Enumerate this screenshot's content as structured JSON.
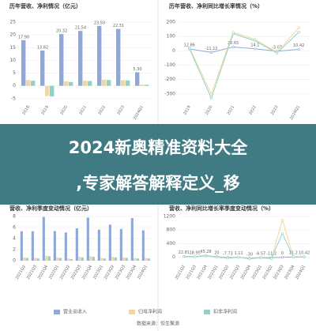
{
  "banner": {
    "line1": "2024新奥精准资料大全",
    "line2": ",专家解答解释定义_移"
  },
  "source": "数据来源：恒生聚源",
  "chart_data": [
    {
      "type": "bar",
      "title": "历年营收、净利情况（亿元）",
      "categories": [
        "2018",
        "2019",
        "2020",
        "2021",
        "2022",
        "2023",
        "2024Q1"
      ],
      "series": [
        {
          "color": "#8fa8d8",
          "values": [
            17.9,
            13.82,
            20.32,
            21.54,
            23.5,
            22.31,
            5.3
          ],
          "value_labels": [
            "17.90",
            "13.82",
            "20.32",
            "21.54",
            "23.50",
            "22.31",
            "5.30"
          ]
        },
        {
          "color": "#f3d79b",
          "values": [
            2.3,
            -4.0,
            1.8,
            2.0,
            2.4,
            2.2,
            0.5
          ]
        },
        {
          "color": "#8fd3c8",
          "values": [
            2.0,
            -4.2,
            1.5,
            1.9,
            2.3,
            2.1,
            0.4
          ]
        }
      ],
      "ylim": [
        -6,
        25
      ],
      "yticks": [
        -5,
        0,
        5,
        10,
        15,
        20,
        25
      ],
      "grid": true
    },
    {
      "type": "line",
      "title": "历年营收、净利同比增长率情况（%）",
      "categories": [
        "2019",
        "2020",
        "2021",
        "2022",
        "2023",
        "2024Q1"
      ],
      "series": [
        {
          "color": "#8fa8d8",
          "values": [
            12.86,
            -11.12,
            26.65,
            14.1,
            -3.07,
            10.42
          ],
          "value_labels": [
            "12.86",
            "-11.12",
            "26.65",
            "14.1",
            "-3.07",
            "10.42"
          ]
        },
        {
          "color": "#f3d79b",
          "values": [
            20,
            -300,
            130,
            80,
            -10,
            160
          ]
        },
        {
          "color": "#8fd3c8",
          "values": [
            15,
            -330,
            120,
            70,
            -15,
            130
          ]
        }
      ],
      "ylim": [
        -350,
        200
      ],
      "yticks": [
        -300,
        -200,
        -100,
        0,
        100,
        200
      ],
      "grid": true
    },
    {
      "type": "bar",
      "title": "营收、净利季度变动情况（亿元）",
      "categories": [
        "2021Q2",
        "2021Q3",
        "2021Q4",
        "2022Q1",
        "2022Q2",
        "2022Q3",
        "2022Q4",
        "2023Q1",
        "2023Q2",
        "2023Q3",
        "2023Q4",
        "2024Q1"
      ],
      "series": [
        {
          "name": "营业总收入",
          "color": "#8fa8d8",
          "values": [
            5.33,
            5.32,
            7.9,
            5.35,
            5.1,
            5.85,
            7.8,
            5.6,
            6.51,
            5.73,
            7.7,
            5.49
          ]
        },
        {
          "name": "归母净利润",
          "color": "#f3d79b",
          "values": [
            0.6,
            0.5,
            0.9,
            0.6,
            0.4,
            0.7,
            0.8,
            0.5,
            0.7,
            0.6,
            0.5,
            0.5
          ]
        },
        {
          "name": "扣非净利润",
          "color": "#8fd3c8",
          "values": [
            0.5,
            0.4,
            0.8,
            0.5,
            0.3,
            0.6,
            0.7,
            0.4,
            0.6,
            0.5,
            0.4,
            0.4
          ]
        }
      ],
      "ylim": [
        0,
        8
      ],
      "yticks": [
        0,
        2,
        4,
        6,
        8
      ],
      "grid": true
    },
    {
      "type": "line",
      "title": "营收、净利同比增长率季度变动情况（%）",
      "categories": [
        "2021Q2",
        "2021Q3",
        "2021Q4",
        "2022Q1",
        "2022Q2",
        "2022Q3",
        "2022Q4",
        "2023Q1",
        "2023Q2",
        "2023Q3",
        "2023Q4",
        "2024Q1"
      ],
      "series": [
        {
          "color": "#8fa8d8",
          "values": [
            22.81,
            18.95,
            45.28,
            20,
            -7.73,
            1.11,
            -30,
            -6.57,
            -11.2,
            0,
            11.2,
            10.42
          ],
          "value_labels": [
            "22.81",
            "18.95",
            "45.28",
            "20",
            "-7.73",
            "1.11",
            "-30",
            "-6.57",
            "-11.2",
            "0",
            "11.2",
            "10.42"
          ]
        },
        {
          "color": "#f3d79b",
          "values": [
            30,
            20,
            60,
            10,
            -20,
            5,
            -40,
            -10,
            -30,
            1100,
            20,
            15
          ]
        },
        {
          "color": "#8fd3c8",
          "values": [
            25,
            15,
            50,
            5,
            -25,
            0,
            -45,
            -15,
            -35,
            700,
            15,
            10
          ]
        }
      ],
      "ylim": [
        -100,
        1200
      ],
      "yticks": [
        0,
        400,
        800,
        1200
      ],
      "grid": true
    }
  ]
}
